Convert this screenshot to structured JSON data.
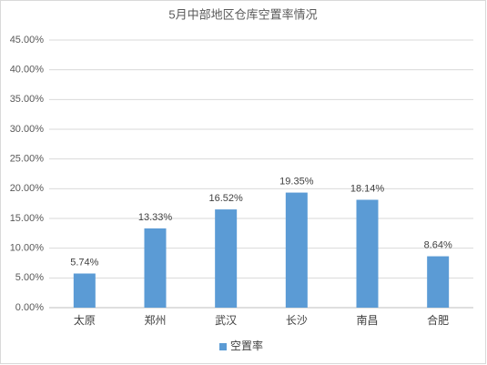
{
  "chart_data": {
    "type": "bar",
    "title": "5月中部地区仓库空置率情况",
    "categories": [
      "太原",
      "郑州",
      "武汉",
      "长沙",
      "南昌",
      "合肥"
    ],
    "series": [
      {
        "name": "空置率",
        "color": "#5b9bd5",
        "values": [
          5.74,
          13.33,
          16.52,
          19.35,
          18.14,
          8.64
        ],
        "value_labels": [
          "5.74%",
          "13.33%",
          "16.52%",
          "19.35%",
          "18.14%",
          "8.64%"
        ]
      }
    ],
    "ylim": [
      0,
      45
    ],
    "yticks": [
      {
        "value": 0,
        "label": "0.00%"
      },
      {
        "value": 5,
        "label": "5.00%"
      },
      {
        "value": 10,
        "label": "10.00%"
      },
      {
        "value": 15,
        "label": "15.00%"
      },
      {
        "value": 20,
        "label": "20.00%"
      },
      {
        "value": 25,
        "label": "25.00%"
      },
      {
        "value": 30,
        "label": "30.00%"
      },
      {
        "value": 35,
        "label": "35.00%"
      },
      {
        "value": 40,
        "label": "40.00%"
      },
      {
        "value": 45,
        "label": "45.00%"
      }
    ],
    "grid": true,
    "legend": "bottom"
  }
}
